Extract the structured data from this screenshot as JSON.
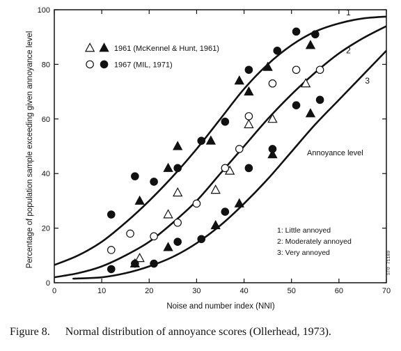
{
  "caption": {
    "figure": "Figure 8.",
    "text": "Normal distribution of annoyance scores (Ollerhead, 1973)."
  },
  "stamp": "STO 71189",
  "chart_data": {
    "type": "scatter",
    "xlabel": "Noise and number index (NNI)",
    "ylabel": "Percentage of population sample exceeding given annoyance level",
    "xlim": [
      0,
      70
    ],
    "ylim": [
      0,
      100
    ],
    "xticks": [
      "0",
      "10",
      "20",
      "30",
      "40",
      "50",
      "60",
      "70"
    ],
    "yticks": [
      "0",
      "20",
      "40",
      "60",
      "80",
      "100"
    ],
    "legend": [
      {
        "label": "1961 (McKennel & Hunt, 1961)",
        "markers": [
          "open-triangle",
          "filled-triangle"
        ]
      },
      {
        "label": "1967 (MIL, 1971)",
        "markers": [
          "open-circle",
          "filled-circle"
        ]
      }
    ],
    "annoyance_title": "Annoyance level",
    "annoyance_levels": [
      {
        "id": "1",
        "label": "1:  Little  annoyed"
      },
      {
        "id": "2",
        "label": "2:  Moderately annoyed"
      },
      {
        "id": "3",
        "label": "3:  Very  annoyed"
      }
    ],
    "curves": [
      {
        "label": "1",
        "points": [
          [
            0,
            6.5
          ],
          [
            5,
            10
          ],
          [
            10,
            15
          ],
          [
            15,
            22
          ],
          [
            20,
            30
          ],
          [
            25,
            39
          ],
          [
            30,
            49
          ],
          [
            35,
            60
          ],
          [
            40,
            71
          ],
          [
            45,
            80
          ],
          [
            50,
            87
          ],
          [
            55,
            92
          ],
          [
            60,
            95
          ],
          [
            65,
            96.8
          ],
          [
            70,
            97.5
          ]
        ]
      },
      {
        "label": "2",
        "points": [
          [
            0,
            2
          ],
          [
            5,
            3.5
          ],
          [
            10,
            6
          ],
          [
            15,
            10
          ],
          [
            20,
            15
          ],
          [
            25,
            22
          ],
          [
            30,
            30
          ],
          [
            35,
            40
          ],
          [
            40,
            50
          ],
          [
            45,
            60
          ],
          [
            50,
            69
          ],
          [
            55,
            77
          ],
          [
            60,
            84
          ],
          [
            65,
            89.5
          ],
          [
            70,
            94
          ]
        ]
      },
      {
        "label": "3",
        "points": [
          [
            4,
            1.5
          ],
          [
            10,
            2
          ],
          [
            15,
            3.5
          ],
          [
            20,
            6
          ],
          [
            25,
            9.5
          ],
          [
            30,
            14.5
          ],
          [
            35,
            21
          ],
          [
            40,
            29
          ],
          [
            45,
            38
          ],
          [
            50,
            48
          ],
          [
            55,
            58
          ],
          [
            60,
            67
          ],
          [
            65,
            76
          ],
          [
            70,
            85
          ]
        ]
      }
    ],
    "series": [
      {
        "marker": "filled-triangle",
        "points": [
          [
            18,
            30
          ],
          [
            24,
            42
          ],
          [
            26,
            50
          ],
          [
            33,
            52
          ],
          [
            39,
            74
          ],
          [
            41,
            70
          ],
          [
            45,
            79
          ],
          [
            54,
            87
          ],
          [
            17,
            7
          ],
          [
            24,
            13
          ],
          [
            34,
            21
          ],
          [
            39,
            29
          ],
          [
            46,
            47
          ],
          [
            54,
            62
          ]
        ]
      },
      {
        "marker": "open-triangle",
        "points": [
          [
            18,
            9
          ],
          [
            24,
            25
          ],
          [
            26,
            33
          ],
          [
            34,
            34
          ],
          [
            37,
            41
          ],
          [
            41,
            58
          ],
          [
            46,
            60
          ],
          [
            53,
            73
          ]
        ]
      },
      {
        "marker": "filled-circle",
        "points": [
          [
            12,
            25
          ],
          [
            17,
            39
          ],
          [
            21,
            37
          ],
          [
            26,
            42
          ],
          [
            31,
            52
          ],
          [
            36,
            59
          ],
          [
            41,
            78
          ],
          [
            47,
            85
          ],
          [
            51,
            92
          ],
          [
            55,
            91
          ],
          [
            12,
            5
          ],
          [
            17,
            7
          ],
          [
            21,
            7
          ],
          [
            26,
            15
          ],
          [
            31,
            16
          ],
          [
            36,
            26
          ],
          [
            41,
            42
          ],
          [
            46,
            49
          ],
          [
            51,
            65
          ],
          [
            56,
            67
          ]
        ]
      },
      {
        "marker": "open-circle",
        "points": [
          [
            12,
            12
          ],
          [
            16,
            18
          ],
          [
            21,
            17
          ],
          [
            26,
            22
          ],
          [
            30,
            29
          ],
          [
            36,
            42
          ],
          [
            39,
            49
          ],
          [
            41,
            61
          ],
          [
            46,
            73
          ],
          [
            51,
            78
          ],
          [
            56,
            78
          ]
        ]
      }
    ]
  }
}
